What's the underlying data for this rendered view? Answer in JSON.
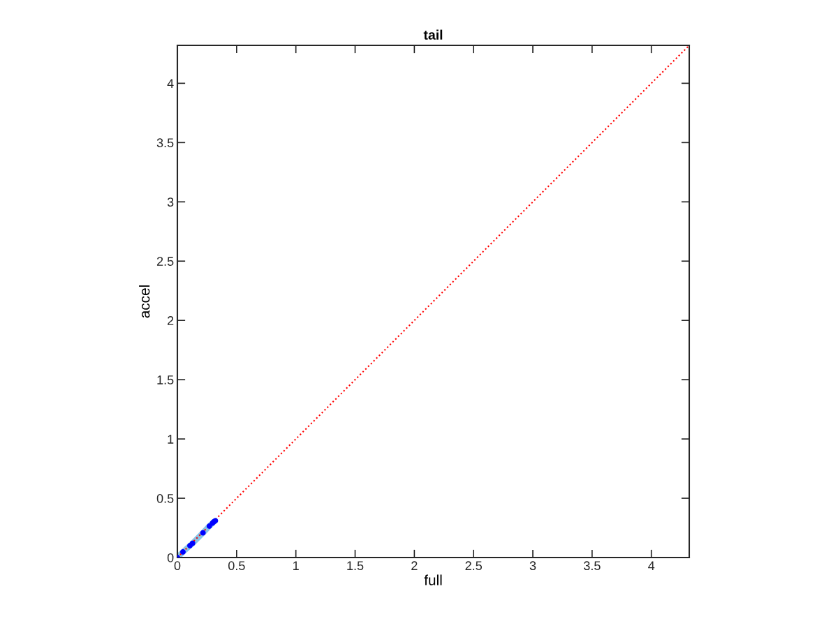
{
  "chart_data": {
    "type": "line",
    "title": "tail",
    "xlabel": "full",
    "ylabel": "accel",
    "xlim": [
      0,
      4.32
    ],
    "ylim": [
      0,
      4.32
    ],
    "xticks": [
      0,
      0.5,
      1,
      1.5,
      2,
      2.5,
      3,
      3.5,
      4
    ],
    "yticks": [
      0,
      0.5,
      1,
      1.5,
      2,
      2.5,
      3,
      3.5,
      4
    ],
    "grid": false,
    "legend": false,
    "series": [
      {
        "color": "#87c4e6",
        "line_style": "solid",
        "marker": "none",
        "x": [
          0,
          0.047,
          0.106,
          0.128,
          0.216,
          0.27,
          0.296,
          0.306,
          0.32
        ],
        "values": [
          0,
          0.047,
          0.1,
          0.12,
          0.208,
          0.265,
          0.29,
          0.3,
          0.31
        ]
      },
      {
        "type": "scatter",
        "color": "#0000ff",
        "marker": "circle",
        "x": [
          0,
          0.047,
          0.106,
          0.128,
          0.216,
          0.27,
          0.296,
          0.306,
          0.32
        ],
        "values": [
          0,
          0.047,
          0.1,
          0.12,
          0.208,
          0.265,
          0.29,
          0.3,
          0.31
        ]
      },
      {
        "type": "line",
        "color": "#ff0000",
        "line_style": "dotted",
        "marker": "none",
        "x": [
          0,
          4.32
        ],
        "values": [
          0,
          4.32
        ]
      }
    ]
  }
}
